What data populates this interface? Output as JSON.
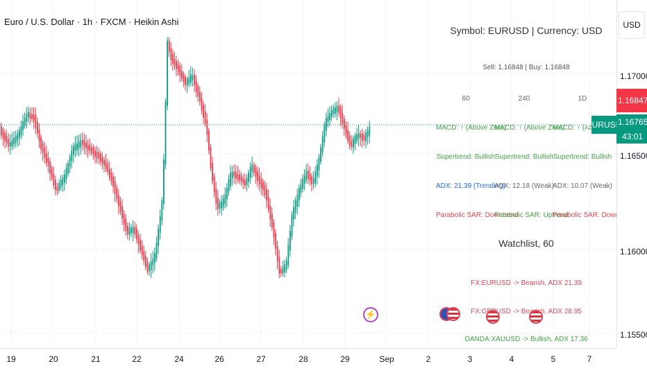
{
  "header": {
    "title": "Euro / U.S. Dollar · 1h · FXCM · Heikin Ashi",
    "currency_button": "USD"
  },
  "price_axis": {
    "ticks": [
      "1.17000",
      "1.16500",
      "1.16000",
      "1.15500"
    ],
    "tags": {
      "sell_price": "1.16847",
      "last_price": "1.16765",
      "countdown": "43:01"
    },
    "ticker_label": "EURUSD"
  },
  "time_axis": {
    "ticks": [
      "19",
      "20",
      "21",
      "22",
      "24",
      "26",
      "27",
      "28",
      "29",
      "Sep",
      "2",
      "3",
      "4",
      "5",
      "7"
    ]
  },
  "info_panel": {
    "title": "Symbol: EURUSD | Currency: USD",
    "quote": "Sell: 1.16848 | Buy: 1.16848",
    "columns": [
      {
        "timeframe": "60",
        "macd": "MACD: ↑ (Above Zero)",
        "supertrend": "Supertrend: Bullish",
        "adx": "ADX: 21.39 (Trending)",
        "sar": "Parabolic SAR: Downtrend"
      },
      {
        "timeframe": "240",
        "macd": "MACD: ↑ (Above Zero)",
        "supertrend": "Supertrend: Bullish",
        "adx": "ADX: 12.18 (Weak)",
        "sar": "Parabolic SAR: Uptrend"
      },
      {
        "timeframe": "1D",
        "macd": "MACD: ↑ (Above Zero)",
        "supertrend": "Supertrend: Bullish",
        "adx": "ADX: 10.07 (Weak)",
        "sar": "Parabolic SAR: Downtrend"
      }
    ],
    "watchlist_title": "Watchlist, 60",
    "watchlist": [
      "FX:EURUSD -> Bearish, ADX 21.39",
      "FX:GBPUSD -> Bearish, ADX 28.95",
      "OANDA:XAUUSD -> Bullish, ADX 17.36"
    ]
  },
  "colors": {
    "up": "#089981",
    "down": "#f23645",
    "grid": "#f0f3fa",
    "current_line": "#089981"
  },
  "icons": {
    "flash": "lightning-icon",
    "flags": [
      "eu-us-flag-icon",
      "us-flag-icon",
      "us-flag-icon"
    ]
  }
}
